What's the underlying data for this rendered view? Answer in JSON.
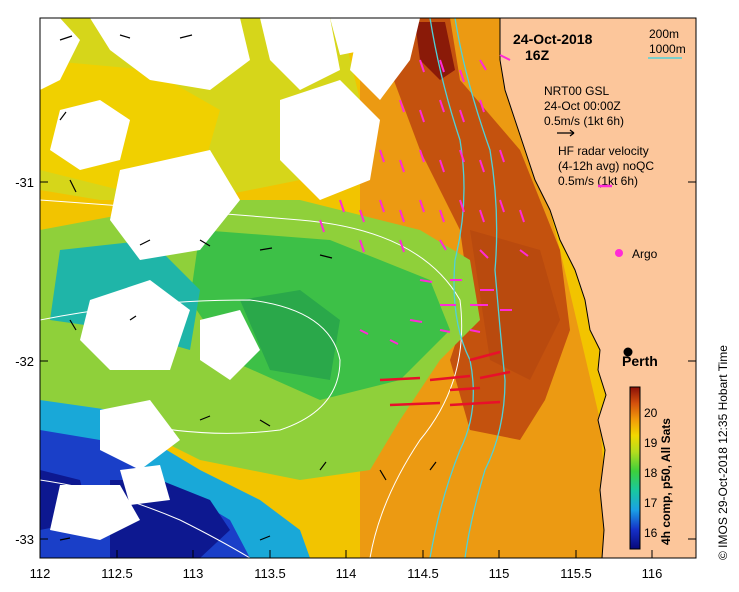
{
  "map": {
    "date_line": "24-Oct-2018",
    "time_line": "16Z",
    "isobath_labels": [
      "200m",
      "1000m"
    ],
    "isobath_color": "#4fd1d9",
    "gsl_note": [
      "NRT00 GSL",
      "24-Oct 00:00Z",
      "0.5m/s (1kt 6h)"
    ],
    "radar_note": [
      "HF radar velocity",
      "(4-12h avg) noQC",
      "0.5m/s (1kt 6h)"
    ],
    "radar_vector_color": "#ff2bd6",
    "argo_label": "Argo",
    "city_label": "Perth",
    "land_color": "#fcc69b",
    "colorbar_title": "4h comp, p50, All Sats",
    "colorbar_ticks": [
      "20",
      "19",
      "18",
      "17",
      "16"
    ],
    "colorbar_range": [
      15.4,
      20.8
    ],
    "credit": "© IMOS 29-Oct-2018 12:35 Hobart Time",
    "x_ticks": [
      "112",
      "112.5",
      "113",
      "113.5",
      "114",
      "114.5",
      "115",
      "115.5",
      "116"
    ],
    "y_ticks": [
      "-31",
      "-32",
      "-33"
    ]
  }
}
